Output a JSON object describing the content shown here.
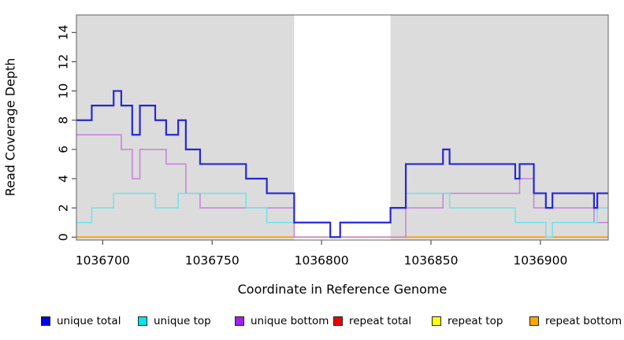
{
  "figure": {
    "xlabel": "Coordinate in Reference Genome",
    "ylabel": "Read Coverage Depth"
  },
  "chart_data": {
    "type": "line",
    "style": "step",
    "xlabel": "Coordinate in Reference Genome",
    "ylabel": "Read Coverage Depth",
    "x_range": [
      1036688,
      1036931
    ],
    "y_range": [
      -0.2,
      15.2
    ],
    "x_ticks": [
      1036700,
      1036750,
      1036800,
      1036850,
      1036900
    ],
    "y_ticks": [
      0,
      2,
      4,
      6,
      8,
      10,
      12,
      14
    ],
    "grid": false,
    "legend_position": "bottom",
    "plot_background": "#dcdcdc",
    "page_background": "#ffffff",
    "border_color": "#606060",
    "highlight_band": {
      "x_start": 1036787.5,
      "x_end": 1036831.5,
      "color": "#ffffff"
    },
    "band_zero_overlay": {
      "x_start": 1036787.5,
      "x_end": 1036838.5,
      "value": 0,
      "color": "#d0647e"
    },
    "series": [
      {
        "name": "repeat total",
        "line_color": "#ee0000",
        "width": 1.5,
        "steps": [
          [
            1036688,
            0
          ]
        ]
      },
      {
        "name": "repeat top",
        "line_color": "#ffff00",
        "width": 1.5,
        "steps": [
          [
            1036688,
            0
          ]
        ]
      },
      {
        "name": "repeat bottom",
        "line_color": "#ff9d00",
        "width": 1.8,
        "steps": [
          [
            1036688,
            0
          ]
        ]
      },
      {
        "name": "unique bottom",
        "line_color": "#c77fdd",
        "width": 1.5,
        "steps": [
          [
            1036688,
            7
          ],
          [
            1036708.5,
            6
          ],
          [
            1036713.5,
            4
          ],
          [
            1036717,
            6
          ],
          [
            1036729,
            5
          ],
          [
            1036738,
            3
          ],
          [
            1036744.5,
            2
          ],
          [
            1036787.5,
            0
          ],
          [
            1036838.5,
            2
          ],
          [
            1036855.5,
            3
          ],
          [
            1036890.5,
            4
          ],
          [
            1036897,
            2
          ],
          [
            1036924.5,
            1
          ]
        ]
      },
      {
        "name": "unique top",
        "line_color": "#6fe3ec",
        "width": 1.5,
        "steps": [
          [
            1036688,
            1
          ],
          [
            1036695,
            2
          ],
          [
            1036705,
            3
          ],
          [
            1036724,
            2
          ],
          [
            1036734.5,
            3
          ],
          [
            1036765.5,
            2
          ],
          [
            1036775,
            1
          ],
          [
            1036804,
            0
          ],
          [
            1036808.5,
            1
          ],
          [
            1036831.5,
            2
          ],
          [
            1036838.5,
            3
          ],
          [
            1036858.5,
            2
          ],
          [
            1036888.5,
            1
          ],
          [
            1036902.5,
            0
          ],
          [
            1036905.5,
            1
          ],
          [
            1036926,
            2
          ]
        ]
      },
      {
        "name": "unique total",
        "line_color": "#2727d4",
        "width": 2.2,
        "steps": [
          [
            1036688,
            8
          ],
          [
            1036695,
            9
          ],
          [
            1036705,
            10
          ],
          [
            1036708.5,
            9
          ],
          [
            1036713.5,
            7
          ],
          [
            1036717,
            9
          ],
          [
            1036724,
            8
          ],
          [
            1036729,
            7
          ],
          [
            1036734.5,
            8
          ],
          [
            1036738,
            6
          ],
          [
            1036744.5,
            5
          ],
          [
            1036765.5,
            4
          ],
          [
            1036775,
            3
          ],
          [
            1036787.5,
            1
          ],
          [
            1036804,
            0
          ],
          [
            1036808.5,
            1
          ],
          [
            1036831.5,
            2
          ],
          [
            1036838.5,
            5
          ],
          [
            1036855.5,
            6
          ],
          [
            1036858.5,
            5
          ],
          [
            1036888.5,
            4
          ],
          [
            1036890.5,
            5
          ],
          [
            1036897,
            3
          ],
          [
            1036902.5,
            2
          ],
          [
            1036905.5,
            3
          ],
          [
            1036924.5,
            2
          ],
          [
            1036926,
            3
          ]
        ]
      }
    ]
  },
  "legend": {
    "items": [
      {
        "label": "unique total",
        "color": "#0000ee"
      },
      {
        "label": "unique top",
        "color": "#00e5ee"
      },
      {
        "label": "unique bottom",
        "color": "#a020f0"
      },
      {
        "label": "repeat total",
        "color": "#ee0000"
      },
      {
        "label": "repeat top",
        "color": "#ffff00"
      },
      {
        "label": "repeat bottom",
        "color": "#ffa500"
      }
    ]
  }
}
